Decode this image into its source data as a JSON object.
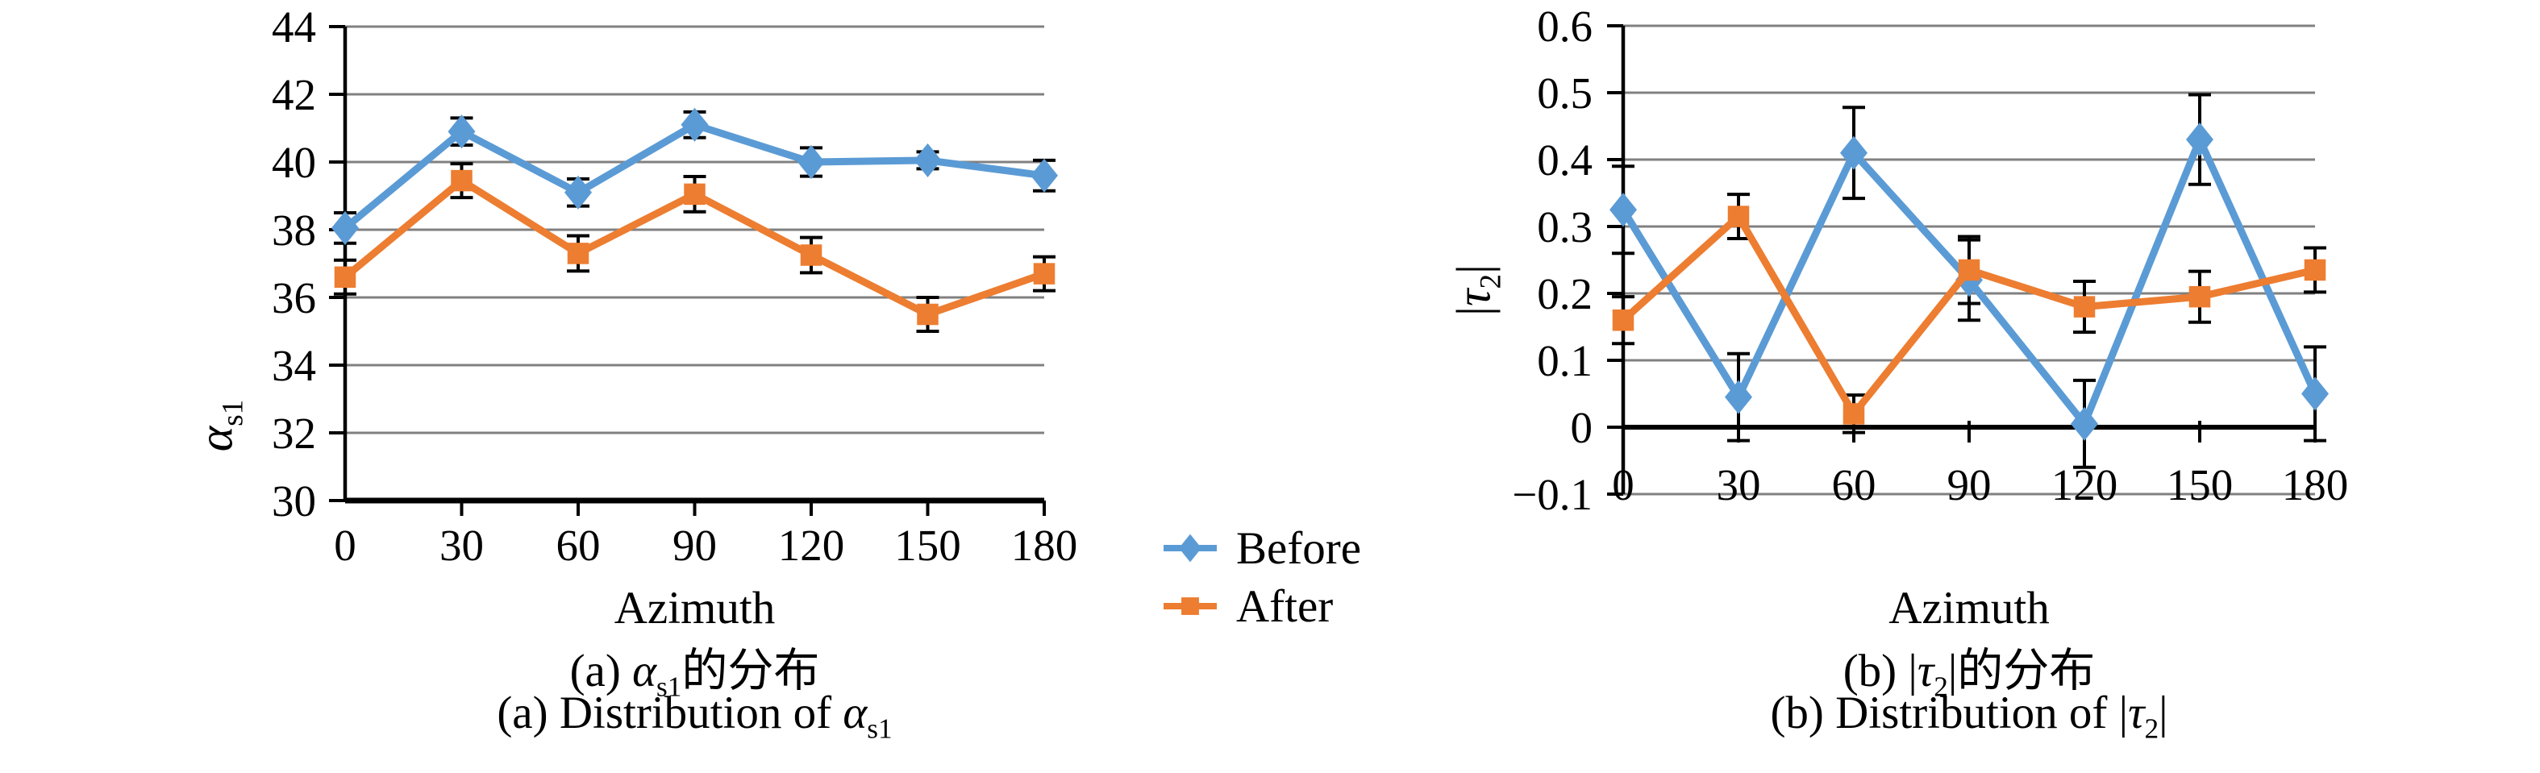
{
  "colors": {
    "before": "#5B9BD5",
    "after": "#ED7D31",
    "grid": "#808080",
    "axis": "#000000",
    "error_bar": "#000000"
  },
  "legend": {
    "items": [
      {
        "label": "Before",
        "color": "#5B9BD5",
        "marker": "diamond"
      },
      {
        "label": "After",
        "color": "#ED7D31",
        "marker": "square"
      }
    ]
  },
  "ylabels": {
    "a": {
      "pre": "",
      "sym": "α",
      "sub": "s1",
      "post": ""
    },
    "b": {
      "pre": "|",
      "sym": "τ",
      "sub": "2",
      "post": "|"
    }
  },
  "captions": {
    "a_cn": {
      "pre": "(a) ",
      "sym": "α",
      "sub": "s1",
      "post": "的分布"
    },
    "a_en": {
      "pre": "(a) Distribution of ",
      "sym": "α",
      "sub": "s1",
      "post": ""
    },
    "b_cn": {
      "pre": "(b) |",
      "sym": "τ",
      "sub": "2",
      "post": "|的分布"
    },
    "b_en": {
      "pre": "(b) Distribution of |",
      "sym": "τ",
      "sub": "2",
      "post": "|"
    }
  },
  "chart_data": [
    {
      "id": "a",
      "type": "line",
      "title": "(a) Distribution of alpha_s1",
      "xlabel": "Azimuth",
      "ylabel": "alpha_s1",
      "categories": [
        0,
        30,
        60,
        90,
        120,
        150,
        180
      ],
      "ylim": [
        30,
        44
      ],
      "ystep": 2,
      "ydecimals": 0,
      "x_axis_at": 30,
      "grid": true,
      "legend_position": "right-of-chart",
      "series": [
        {
          "name": "Before",
          "color": "#5B9BD5",
          "marker": "diamond",
          "values": [
            38.05,
            40.9,
            39.1,
            41.1,
            40.0,
            40.05,
            39.6
          ],
          "errors": [
            0.45,
            0.4,
            0.4,
            0.38,
            0.42,
            0.25,
            0.45
          ]
        },
        {
          "name": "After",
          "color": "#ED7D31",
          "marker": "square",
          "values": [
            36.6,
            39.45,
            37.3,
            39.05,
            37.25,
            35.5,
            36.7
          ],
          "errors": [
            0.5,
            0.5,
            0.52,
            0.52,
            0.52,
            0.5,
            0.5
          ]
        }
      ]
    },
    {
      "id": "b",
      "type": "line",
      "title": "(b) Distribution of |tau_2|",
      "xlabel": "Azimuth",
      "ylabel": "|tau_2|",
      "categories": [
        0,
        30,
        60,
        90,
        120,
        150,
        180
      ],
      "ylim": [
        -0.1,
        0.6
      ],
      "ystep": 0.1,
      "ydecimals": 1,
      "x_axis_at": 0,
      "grid": true,
      "series": [
        {
          "name": "Before",
          "color": "#5B9BD5",
          "marker": "diamond",
          "values": [
            0.325,
            0.045,
            0.41,
            0.22,
            0.005,
            0.43,
            0.05
          ],
          "errors": [
            0.065,
            0.065,
            0.068,
            0.06,
            0.065,
            0.067,
            0.07
          ]
        },
        {
          "name": "After",
          "color": "#ED7D31",
          "marker": "square",
          "values": [
            0.16,
            0.315,
            0.02,
            0.235,
            0.18,
            0.195,
            0.235
          ],
          "errors": [
            0.035,
            0.033,
            0.028,
            0.05,
            0.038,
            0.038,
            0.033
          ]
        }
      ]
    }
  ]
}
